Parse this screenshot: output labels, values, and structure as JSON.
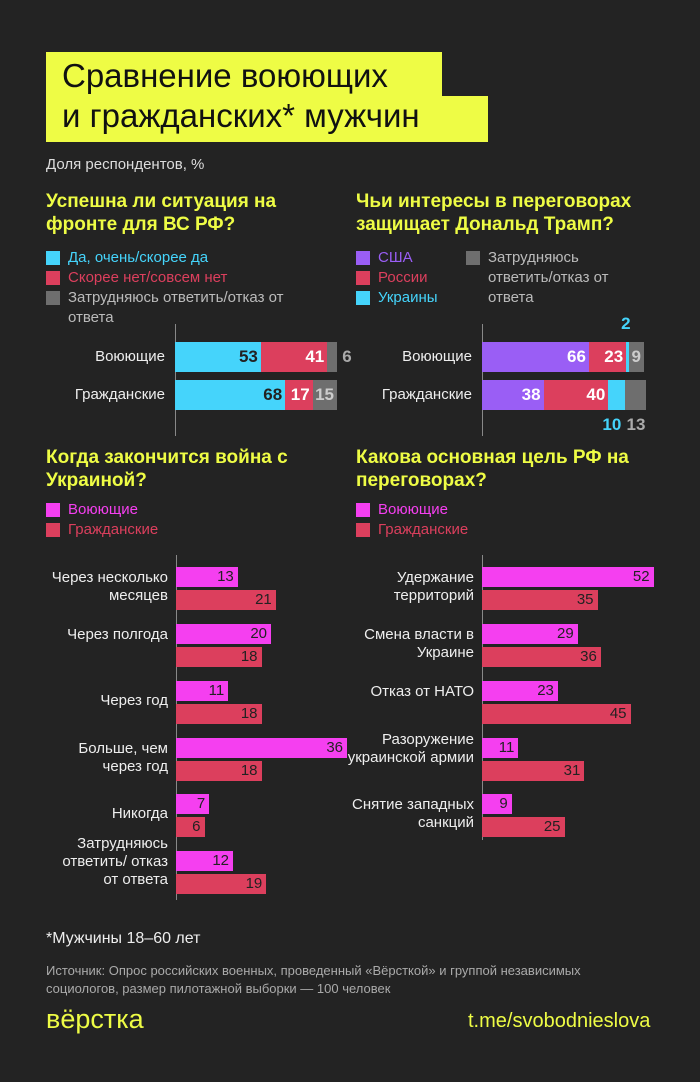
{
  "title": {
    "line1": "Сравнение воюющих",
    "line2": "и гражданских* мужчин"
  },
  "subtitle": "Доля респондентов, %",
  "colors": {
    "background": "#232323",
    "accent": "#eefc45",
    "cyan": "#45d4fb",
    "red": "#dc3f5d",
    "gray": "#6e6e6e",
    "purple": "#9a5ef5",
    "magenta": "#f53ff0"
  },
  "chart_data": [
    {
      "type": "bar",
      "stacked": true,
      "orientation": "horizontal",
      "title": "Успешна ли ситуация на фронте для ВС РФ?",
      "categories": [
        "Воюющие",
        "Гражданские"
      ],
      "series": [
        {
          "name": "Да, очень/скорее да",
          "color": "#45d4fb",
          "values": [
            53,
            68
          ]
        },
        {
          "name": "Скорее нет/совсем нет",
          "color": "#dc3f5d",
          "values": [
            41,
            17
          ]
        },
        {
          "name": "Затрудняюсь ответить/отказ от ответа",
          "color": "#6e6e6e",
          "values": [
            6,
            15
          ]
        }
      ]
    },
    {
      "type": "bar",
      "stacked": true,
      "orientation": "horizontal",
      "title": "Чьи интересы в переговорах защищает Дональд Трамп?",
      "categories": [
        "Воюющие",
        "Гражданские"
      ],
      "series": [
        {
          "name": "США",
          "color": "#9a5ef5",
          "values": [
            66,
            38
          ]
        },
        {
          "name": "России",
          "color": "#dc3f5d",
          "values": [
            23,
            40
          ]
        },
        {
          "name": "Украины",
          "color": "#45d4fb",
          "values": [
            2,
            10
          ]
        },
        {
          "name": "Затрудняюсь ответить/отказ от ответа",
          "color": "#6e6e6e",
          "values": [
            9,
            13
          ]
        }
      ]
    },
    {
      "type": "bar",
      "orientation": "horizontal",
      "title": "Когда закончится война с Украиной?",
      "categories": [
        "Через несколько месяцев",
        "Через полгода",
        "Через год",
        "Больше, чем через год",
        "Никогда",
        "Затрудняюсь ответить/ отказ от ответа"
      ],
      "series": [
        {
          "name": "Воюющие",
          "color": "#f53ff0",
          "values": [
            13,
            20,
            11,
            36,
            7,
            12
          ]
        },
        {
          "name": "Гражданские",
          "color": "#dc3f5d",
          "values": [
            21,
            18,
            18,
            18,
            6,
            19
          ]
        }
      ]
    },
    {
      "type": "bar",
      "orientation": "horizontal",
      "title": "Какова основная цель РФ на переговорах?",
      "categories": [
        "Удержание территорий",
        "Смена власти в Украине",
        "Отказ от НАТО",
        "Разоружение украинской армии",
        "Снятие западных санкций"
      ],
      "series": [
        {
          "name": "Воюющие",
          "color": "#f53ff0",
          "values": [
            52,
            29,
            23,
            11,
            9
          ]
        },
        {
          "name": "Гражданские",
          "color": "#dc3f5d",
          "values": [
            35,
            36,
            45,
            31,
            25
          ]
        }
      ]
    }
  ],
  "footnote": "*Мужчины 18–60 лет",
  "source": "Источник: Опрос российских военных, проведенный «Вёрсткой» и группой независимых социологов, размер пилотажной выборки — 100 человек",
  "logo": "вёрстка",
  "link": "t.me/svobodnieslova"
}
